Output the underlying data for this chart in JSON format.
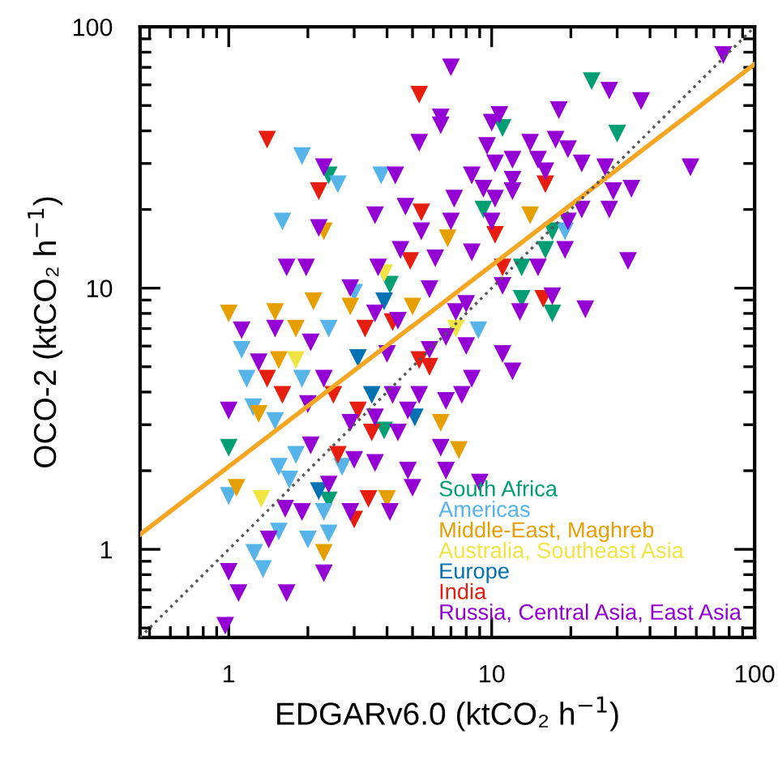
{
  "chart_data": {
    "type": "scatter",
    "xlabel": "EDGARv6.0 (ktCO₂ h$^{−1}$)",
    "ylabel": "OCO-2 (ktCO₂ h$^{−1}$)",
    "log": "xy",
    "xlim": [
      0.46,
      100
    ],
    "ylim": [
      0.46,
      100
    ],
    "xticks": [
      1,
      10,
      100
    ],
    "yticks": [
      1,
      10,
      100
    ],
    "grid": false,
    "legend": "bottom right",
    "marker": "triangle",
    "series": [
      {
        "name": "South Africa",
        "color": "#009e73",
        "x": [
          24,
          11,
          30,
          2.4,
          9.3,
          17,
          13,
          16,
          4.1,
          13,
          17,
          1,
          3.9,
          2.4
        ],
        "values": [
          62,
          41,
          39,
          27,
          20,
          16.5,
          12,
          14,
          10.3,
          9.1,
          8,
          2.45,
          2.85,
          1.54
        ]
      },
      {
        "name": "Americas",
        "color": "#56b4e9",
        "x": [
          1.9,
          2.6,
          3.8,
          1.6,
          19,
          3,
          2.4,
          1.12,
          8.9,
          1.17,
          1.24,
          1.9,
          1.5,
          1,
          1.55,
          1.25,
          1.35,
          2,
          2.3,
          2.4,
          1.55,
          1.8,
          1.7,
          2.7
        ],
        "values": [
          32,
          25,
          27,
          18,
          16.5,
          9.6,
          7,
          5.8,
          6.9,
          4.5,
          3.5,
          4.5,
          3.1,
          1.6,
          1.17,
          0.97,
          0.84,
          1.09,
          1.39,
          1.15,
          2.07,
          2.3,
          1.85,
          2.07
        ]
      },
      {
        "name": "Middle-East, Maghreb",
        "color": "#e69f00",
        "x": [
          2.3,
          14,
          6.8,
          1,
          1.5,
          2.1,
          2.9,
          1.8,
          1.55,
          5,
          5.3,
          6.4,
          1.3,
          1.07,
          2.3,
          4,
          7.5
        ],
        "values": [
          16.5,
          19,
          15.5,
          8,
          8.1,
          8.9,
          8.5,
          7,
          5.3,
          8.5,
          null,
          3.05,
          3.3,
          1.72,
          0.97,
          1.56,
          2.4
        ]
      },
      {
        "name": "Australia, Southeast Asia",
        "color": "#f0e442",
        "x": [
          3.9,
          1.8,
          7.3,
          1.33
        ],
        "values": [
          11.4,
          5.3,
          7,
          1.56
        ]
      },
      {
        "name": "Europe",
        "color": "#0072b2",
        "x": [
          3.9,
          3.1,
          5.1,
          3.5,
          2.2
        ],
        "values": [
          8.9,
          5.4,
          3.2,
          3.9,
          1.67
        ]
      },
      {
        "name": "India",
        "color": "#e51e10",
        "x": [
          1.4,
          5.3,
          2.2,
          5.4,
          4.9,
          10.3,
          16,
          11,
          3.3,
          4.2,
          5.3,
          5.8,
          2.5,
          1.6,
          1.4,
          3.1,
          3.5,
          15.7,
          3,
          3.4,
          3.1,
          2.6
        ],
        "values": [
          37,
          55,
          23.5,
          19.5,
          12.7,
          16,
          25,
          12,
          7,
          7.4,
          5.3,
          5,
          3.9,
          3.9,
          4.5,
          3.4,
          2.8,
          9.1,
          1.3,
          1.56,
          null,
          2.3
        ]
      },
      {
        "name": "Russia, Central Asia, East Asia",
        "color": "#9400d3",
        "x": [
          76,
          7,
          28,
          37,
          6.4,
          6.4,
          10.7,
          10,
          18,
          5.3,
          9.6,
          14,
          17.5,
          19.5,
          22,
          27,
          57,
          12,
          10.3,
          15,
          8.4,
          12,
          16,
          4.3,
          2.3,
          9.3,
          12,
          29,
          34,
          7.2,
          10.3,
          4.7,
          22,
          28,
          3.6,
          5.4,
          7,
          10,
          2.2,
          19.5,
          1.66,
          1.97,
          3.7,
          4.5,
          6.1,
          19,
          33,
          15,
          8.4,
          1.12,
          1.5,
          2.05,
          2.9,
          3.6,
          4.4,
          5.8,
          7.3,
          8,
          11,
          12.8,
          17,
          22.7,
          6.7,
          8,
          11,
          12,
          8.4,
          5.8,
          4,
          1.3,
          1,
          2.3,
          4.2,
          5.3,
          6.7,
          7.7,
          2.9,
          3.6,
          2,
          4.4,
          6.4,
          4.8,
          0.97,
          1.09,
          1,
          1.66,
          2.3,
          1.42,
          1.64,
          1.9,
          2.4,
          2.9,
          4.1,
          4.8,
          5,
          6.7,
          9,
          3.6,
          3,
          2.05
        ],
        "values": [
          78,
          70,
          57,
          52,
          45,
          42,
          46,
          43,
          48,
          36,
          35,
          36,
          37,
          34,
          30,
          29,
          29,
          31,
          30,
          31,
          27,
          26,
          28,
          27,
          29,
          24,
          23.5,
          23.5,
          24,
          22,
          22,
          20.5,
          20,
          20,
          19,
          16.5,
          18,
          18,
          17,
          18,
          12,
          12,
          12,
          14,
          13,
          14,
          12.7,
          12,
          13.7,
          6.9,
          7,
          6.2,
          10,
          8,
          7.5,
          9.9,
          8.1,
          8.7,
          10.2,
          8.1,
          9.3,
          8.3,
          6.5,
          6,
          5.6,
          4.8,
          4.5,
          5.8,
          5.6,
          5.2,
          3.4,
          4.5,
          3.9,
          3.9,
          3.7,
          3.9,
          3.05,
          3.2,
          3.6,
          2.8,
          2.45,
          3.4,
          0.51,
          0.68,
          0.82,
          0.68,
          0.81,
          1.09,
          1.43,
          1.39,
          1.77,
          1.39,
          1.39,
          2,
          1.72,
          2,
          1.8,
          2.14,
          2.2,
          2.5
        ]
      },
      {
        "type": "line",
        "color": "#f5a623",
        "line_style": "solid",
        "marker": "none",
        "x": [
          0.46,
          100
        ],
        "values": [
          1.14,
          72
        ]
      },
      {
        "type": "line",
        "color": "#555555",
        "line_style": "dotted",
        "marker": "none",
        "x": [
          0.46,
          100
        ],
        "values": [
          0.46,
          100
        ]
      }
    ]
  }
}
